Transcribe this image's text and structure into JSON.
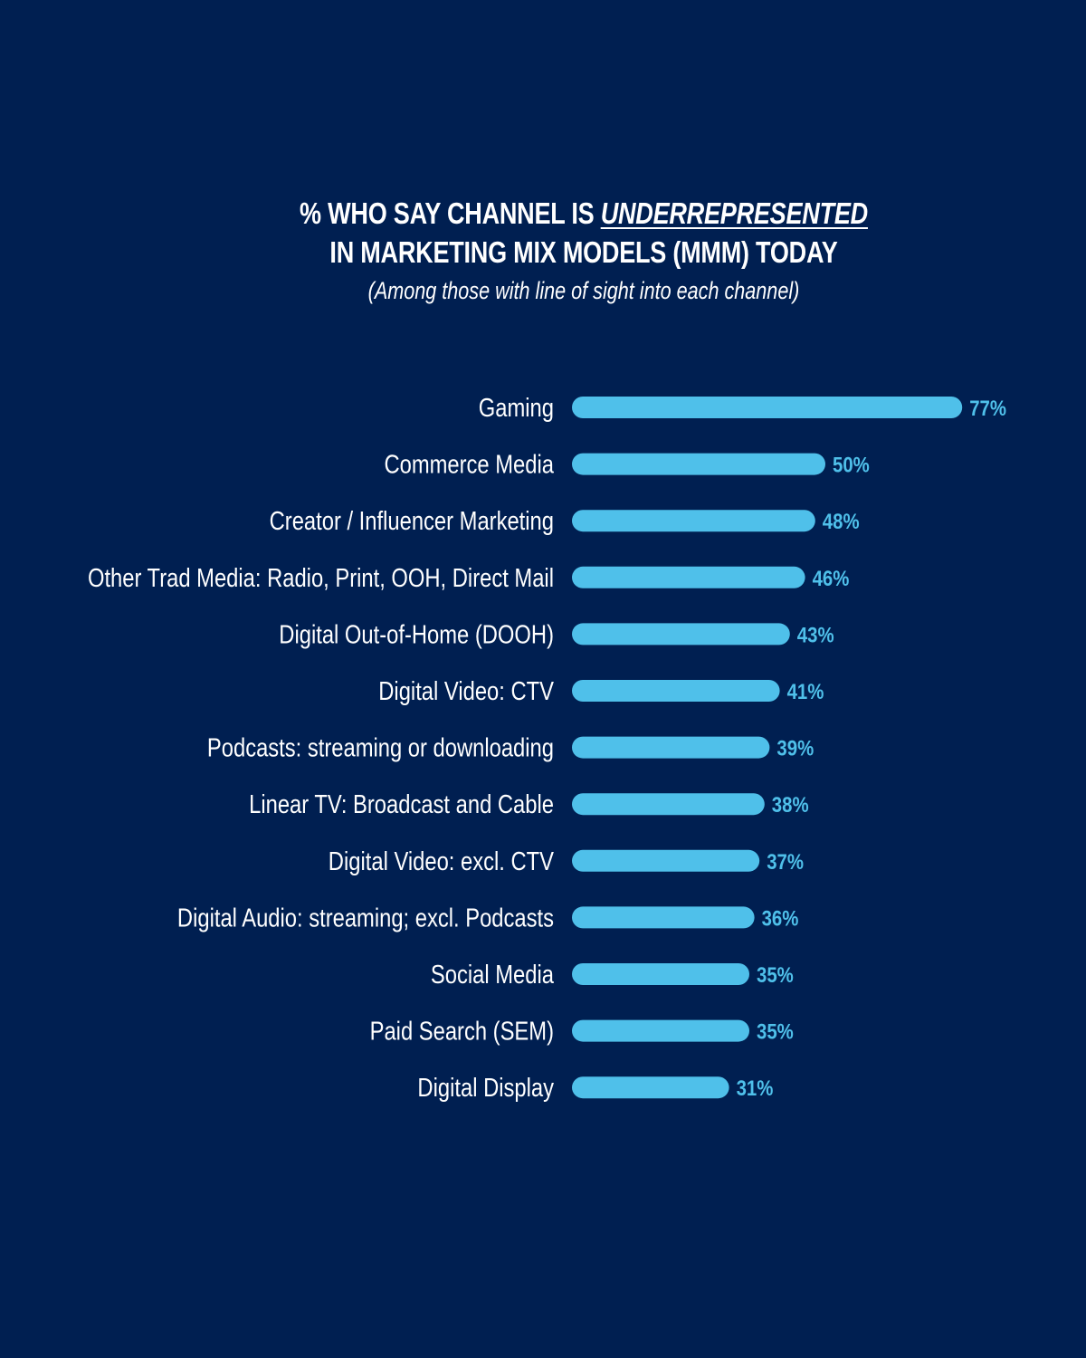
{
  "chart_data": {
    "type": "bar",
    "orientation": "horizontal",
    "title_line1_prefix": "% WHO SAY CHANNEL IS",
    "title_line1_emphasis": "UNDERREPRESENTED",
    "title_line2": "IN MARKETING MIX MODELS (MMM) TODAY",
    "subtitle": "(Among those with line of sight into each channel)",
    "categories": [
      "Gaming",
      "Commerce Media",
      "Creator / Influencer Marketing",
      "Other Trad Media: Radio, Print, OOH, Direct Mail",
      "Digital Out-of-Home (DOOH)",
      "Digital Video: CTV",
      "Podcasts: streaming or downloading",
      "Linear TV: Broadcast and Cable",
      "Digital Video: excl. CTV",
      "Digital Audio: streaming; excl. Podcasts",
      "Social Media",
      "Paid Search (SEM)",
      "Digital Display"
    ],
    "values": [
      77,
      50,
      48,
      46,
      43,
      41,
      39,
      38,
      37,
      36,
      35,
      35,
      31
    ],
    "value_labels": [
      "77%",
      "50%",
      "48%",
      "46%",
      "43%",
      "41%",
      "39%",
      "38%",
      "37%",
      "36%",
      "35%",
      "35%",
      "31%"
    ],
    "unit": "%",
    "grid": false,
    "legend": "none",
    "colors": {
      "background": "#001f51",
      "bar": "#4fc0ea",
      "text": "#ffffff"
    }
  }
}
